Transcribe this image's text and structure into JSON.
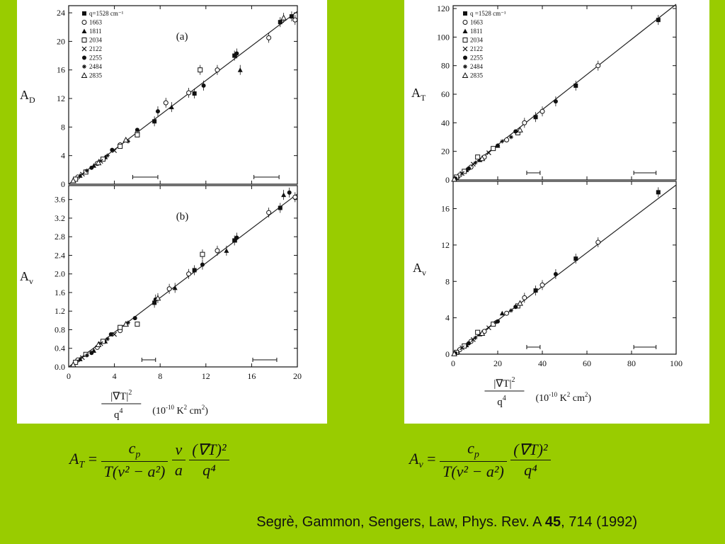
{
  "colors": {
    "background": "#99cc00",
    "panel": "#ffffff",
    "ink": "#111111"
  },
  "legend": {
    "left": [
      "q=1528 cm⁻¹",
      "1663",
      "1811",
      "2034",
      "2122",
      "2255",
      "2484",
      "2835"
    ],
    "right": [
      "q =1528 cm⁻¹",
      "1663",
      "1811",
      "2034",
      "2122",
      "2255",
      "2484",
      "2835"
    ],
    "markers": [
      "square-filled",
      "circle-open",
      "triangle-filled",
      "square-open",
      "x",
      "circle-filled",
      "star",
      "triangle-open"
    ]
  },
  "left_axis": {
    "tick_labels": [
      "0",
      "4",
      "8",
      "12",
      "16",
      "20"
    ],
    "label_main": "|∇T|",
    "label_exp": "2",
    "label_den": "q",
    "label_den_exp": "4",
    "units": "(10",
    "units2": "-10",
    "units3": " K",
    "units4": "2",
    "units5": " cm",
    "units6": "2",
    "units7": ")"
  },
  "right_axis": {
    "tick_labels": [
      "0",
      "20",
      "40",
      "60",
      "80",
      "100"
    ]
  },
  "chart_data": [
    {
      "type": "scatter",
      "panel_label": "(a)",
      "ylabel": "A",
      "ylabel_sub": "D",
      "xlim": [
        0,
        20
      ],
      "ylim": [
        0,
        25
      ],
      "yticks": [
        "0",
        "4",
        "8",
        "12",
        "16",
        "20",
        "24"
      ],
      "fit_line": [
        [
          0,
          0
        ],
        [
          20,
          24.2
        ]
      ],
      "series": [
        {
          "marker": "square-filled",
          "x": [
            7.5,
            11,
            14.5,
            18.5,
            19.5
          ],
          "y": [
            8.8,
            12.7,
            18,
            22.7,
            23.5
          ]
        },
        {
          "marker": "circle-open",
          "x": [
            0.8,
            2.5,
            4.5,
            6,
            8.5,
            10.5,
            13,
            17.5,
            19.8
          ],
          "y": [
            1,
            2.9,
            5.5,
            7.2,
            11.4,
            12.8,
            16,
            20.5,
            23
          ]
        },
        {
          "marker": "triangle-filled",
          "x": [
            1,
            2.2,
            3.2,
            9,
            15
          ],
          "y": [
            1.2,
            2.6,
            3.8,
            10.8,
            16
          ]
        },
        {
          "marker": "square-open",
          "x": [
            0.6,
            1.5,
            3,
            4.5,
            6,
            11.5
          ],
          "y": [
            0.7,
            1.7,
            3.5,
            5.3,
            6.9,
            16
          ]
        },
        {
          "marker": "x",
          "x": [
            1.2,
            2.8,
            4
          ],
          "y": [
            1.4,
            3.2,
            4.7
          ]
        },
        {
          "marker": "circle-filled",
          "x": [
            2,
            3.8,
            6,
            7.8,
            11.8,
            14.7
          ],
          "y": [
            2.3,
            4.8,
            7.6,
            10.2,
            13.8,
            18.3
          ]
        },
        {
          "marker": "star",
          "x": [
            1.6,
            3.4,
            5.2
          ],
          "y": [
            1.9,
            4,
            6
          ]
        },
        {
          "marker": "triangle-open",
          "x": [
            0.4,
            2.6,
            5,
            18.8
          ],
          "y": [
            0.5,
            3,
            6.2,
            23.3
          ]
        }
      ]
    },
    {
      "type": "scatter",
      "panel_label": "(b)",
      "ylabel": "A",
      "ylabel_sub": "v",
      "xlim": [
        0,
        20
      ],
      "ylim": [
        0,
        3.9
      ],
      "yticks": [
        "0.0",
        "0.4",
        "0.8",
        "1.2",
        "1.6",
        "2.0",
        "2.4",
        "2.8",
        "3.2",
        "3.6"
      ],
      "fit_line": [
        [
          0,
          0
        ],
        [
          20,
          3.72
        ]
      ],
      "series": [
        {
          "marker": "square-filled",
          "x": [
            7.5,
            11,
            14.5,
            18.5
          ],
          "y": [
            1.38,
            2.08,
            2.72,
            3.42
          ]
        },
        {
          "marker": "circle-open",
          "x": [
            0.8,
            2.5,
            4.5,
            8.8,
            10.5,
            13,
            17.5,
            19.8
          ],
          "y": [
            0.15,
            0.42,
            0.78,
            1.68,
            2.0,
            2.5,
            3.32,
            3.65
          ]
        },
        {
          "marker": "triangle-filled",
          "x": [
            1,
            2.2,
            3.2,
            9.3,
            13.8,
            18.8
          ],
          "y": [
            0.17,
            0.35,
            0.55,
            1.7,
            2.5,
            3.7
          ]
        },
        {
          "marker": "square-open",
          "x": [
            0.6,
            1.5,
            3,
            4.5,
            6,
            11.7
          ],
          "y": [
            0.1,
            0.27,
            0.55,
            0.85,
            0.92,
            2.42
          ]
        },
        {
          "marker": "x",
          "x": [
            1.2,
            2.8,
            4
          ],
          "y": [
            0.2,
            0.5,
            0.7
          ]
        },
        {
          "marker": "circle-filled",
          "x": [
            2,
            3.7,
            5.8,
            7.6,
            11.7,
            14.7,
            19.3
          ],
          "y": [
            0.3,
            0.7,
            1.05,
            1.45,
            2.2,
            2.78,
            3.75
          ]
        },
        {
          "marker": "star",
          "x": [
            1.6,
            3.4,
            5.2
          ],
          "y": [
            0.25,
            0.6,
            0.95
          ]
        },
        {
          "marker": "triangle-open",
          "x": [
            0.4,
            2.6,
            5,
            7.8
          ],
          "y": [
            0.05,
            0.48,
            0.92,
            1.48
          ]
        }
      ]
    },
    {
      "type": "scatter",
      "ylabel": "A",
      "ylabel_sub": "T",
      "xlim": [
        0,
        100
      ],
      "ylim": [
        0,
        122
      ],
      "yticks": [
        "0",
        "20",
        "40",
        "60",
        "80",
        "100",
        "120"
      ],
      "fit_line": [
        [
          0,
          0
        ],
        [
          100,
          123
        ]
      ],
      "series": [
        {
          "marker": "square-filled",
          "x": [
            37,
            55,
            92
          ],
          "y": [
            44,
            66,
            112
          ]
        },
        {
          "marker": "circle-open",
          "x": [
            3,
            8,
            14,
            24,
            32,
            40,
            65
          ],
          "y": [
            3.5,
            9,
            16,
            28,
            40,
            48,
            80
          ]
        },
        {
          "marker": "triangle-filled",
          "x": [
            2,
            6,
            12,
            20
          ],
          "y": [
            2.5,
            7,
            14,
            24
          ]
        },
        {
          "marker": "square-open",
          "x": [
            1.5,
            5,
            11,
            18,
            29
          ],
          "y": [
            2,
            6,
            16,
            22,
            33
          ]
        },
        {
          "marker": "x",
          "x": [
            4,
            9,
            16
          ],
          "y": [
            4.5,
            11,
            19
          ]
        },
        {
          "marker": "circle-filled",
          "x": [
            1,
            7,
            20,
            28,
            46
          ],
          "y": [
            1,
            8,
            24,
            34,
            55
          ]
        },
        {
          "marker": "star",
          "x": [
            10,
            22,
            26
          ],
          "y": [
            12,
            27,
            30
          ]
        },
        {
          "marker": "triangle-open",
          "x": [
            0.5,
            13,
            30
          ],
          "y": [
            0.5,
            15,
            35
          ]
        }
      ]
    },
    {
      "type": "scatter",
      "ylabel": "A",
      "ylabel_sub": "v",
      "xlim": [
        0,
        100
      ],
      "ylim": [
        0,
        19
      ],
      "yticks": [
        "0",
        "4",
        "8",
        "12",
        "16"
      ],
      "fit_line": [
        [
          0,
          0
        ],
        [
          100,
          18.6
        ]
      ],
      "series": [
        {
          "marker": "square-filled",
          "x": [
            37,
            55,
            92
          ],
          "y": [
            7,
            10.5,
            17.8
          ]
        },
        {
          "marker": "circle-open",
          "x": [
            3,
            8,
            14,
            24,
            32,
            40,
            65
          ],
          "y": [
            0.5,
            1.4,
            2.5,
            4.5,
            6.2,
            7.6,
            12.3
          ]
        },
        {
          "marker": "triangle-filled",
          "x": [
            2,
            6,
            12,
            22
          ],
          "y": [
            0.3,
            1,
            2.2,
            4.5
          ]
        },
        {
          "marker": "square-open",
          "x": [
            1.5,
            5,
            11,
            18,
            29
          ],
          "y": [
            0.2,
            0.9,
            2.4,
            3.3,
            5.3
          ]
        },
        {
          "marker": "x",
          "x": [
            4,
            9,
            16
          ],
          "y": [
            0.7,
            1.6,
            2.9
          ]
        },
        {
          "marker": "circle-filled",
          "x": [
            1,
            7,
            20,
            28,
            46
          ],
          "y": [
            0.1,
            1.2,
            3.6,
            5.2,
            8.8
          ]
        },
        {
          "marker": "star",
          "x": [
            10,
            19,
            26
          ],
          "y": [
            1.8,
            3.5,
            4.8
          ]
        },
        {
          "marker": "triangle-open",
          "x": [
            0.5,
            13,
            30
          ],
          "y": [
            0.05,
            2.3,
            5.6
          ]
        }
      ]
    }
  ],
  "equations": {
    "left": {
      "lhs": "A",
      "lhs_sub": "T",
      "eq": "=",
      "num1": "c",
      "num1_sub": "p",
      "den1": "T(ν² − a²)",
      "num2": "ν",
      "den2": "a",
      "num3": "(∇T)²",
      "den3": "q⁴"
    },
    "right": {
      "lhs": "A",
      "lhs_sub": "ν",
      "eq": "=",
      "num1": "c",
      "num1_sub": "p",
      "den1": "T(ν² − a²)",
      "num3": "(∇T)²",
      "den3": "q⁴"
    }
  },
  "citation": {
    "pre": "Segrè, Gammon, Sengers, Law, Phys. Rev. A ",
    "volume": "45",
    "post": ", 714 (1992)"
  }
}
